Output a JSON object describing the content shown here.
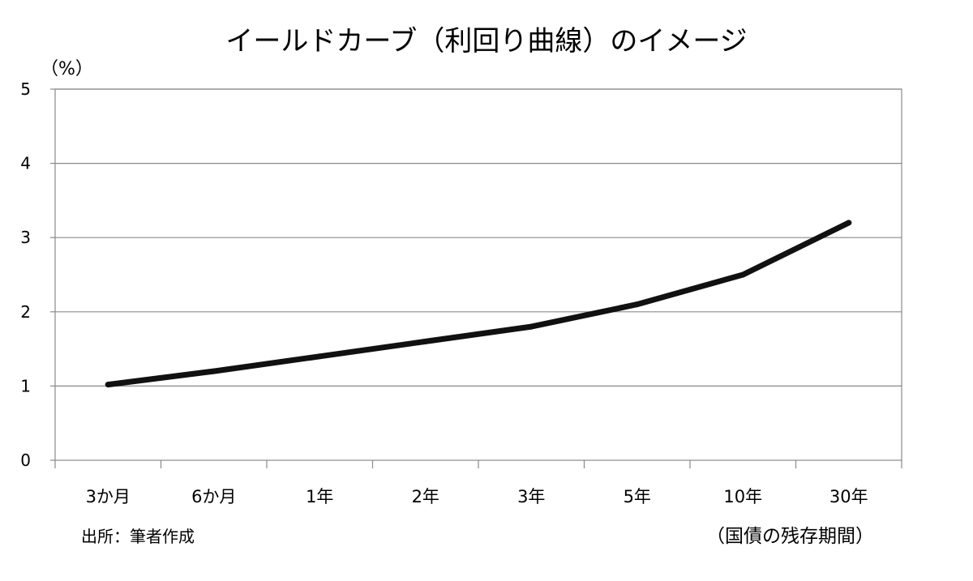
{
  "chart_data": {
    "type": "line",
    "title": "イールドカーブ（利回り曲線）のイメージ",
    "ylabel": "（%）",
    "xlabel": "（国債の残存期間）",
    "source_note": "出所：筆者作成",
    "categories": [
      "3か月",
      "6か月",
      "1年",
      "2年",
      "3年",
      "5年",
      "10年",
      "30年"
    ],
    "series": [
      {
        "values": [
          1.02,
          1.2,
          1.4,
          1.6,
          1.8,
          2.1,
          2.5,
          3.2
        ],
        "color": "#111111"
      }
    ],
    "ylim": [
      0,
      5
    ],
    "yticks": [
      "0",
      "1",
      "2",
      "3",
      "4",
      "5"
    ],
    "grid": true
  }
}
